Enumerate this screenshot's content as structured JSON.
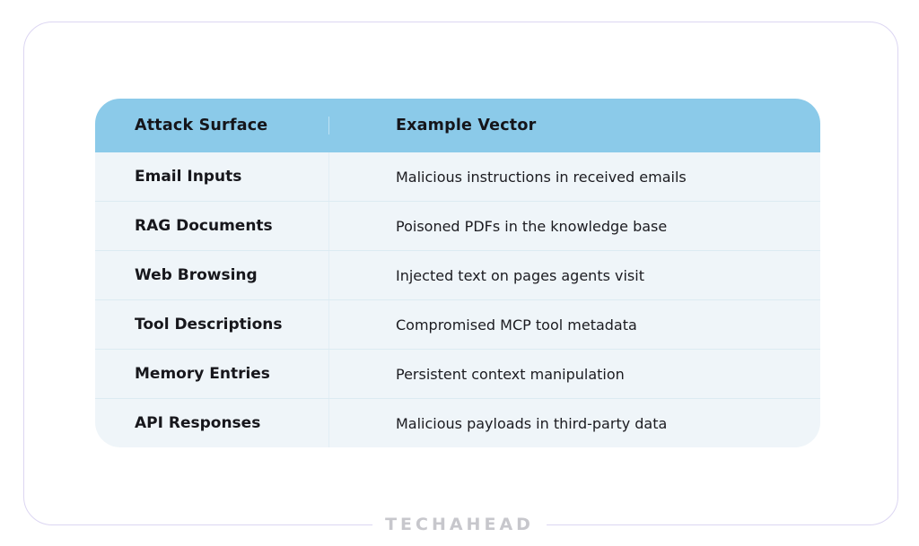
{
  "chart_data": {
    "type": "table",
    "columns": [
      "Attack Surface",
      "Example Vector"
    ],
    "rows": [
      [
        "Email Inputs",
        "Malicious instructions in received emails"
      ],
      [
        "RAG Documents",
        "Poisoned PDFs in the knowledge base"
      ],
      [
        "Web Browsing",
        "Injected text on pages agents visit"
      ],
      [
        "Tool Descriptions",
        "Compromised MCP tool metadata"
      ],
      [
        "Memory Entries",
        "Persistent context manipulation"
      ],
      [
        "API Responses",
        "Malicious payloads in third-party data"
      ]
    ],
    "layout_hints": {
      "header_bg": "#8bcae9",
      "body_bg": "#eff5f9",
      "grid": "light horizontal and vertical dividers",
      "corner_radius": "rounded card"
    }
  },
  "footer": {
    "brand": "TECHAHEAD"
  },
  "colors": {
    "frame_border": "#dcd6f2",
    "header_blue": "#8bcae9",
    "body_background": "#eff5f9",
    "row_divider": "#dcebf2",
    "text": "#17171c",
    "brand_gray": "#c7c7cc"
  }
}
